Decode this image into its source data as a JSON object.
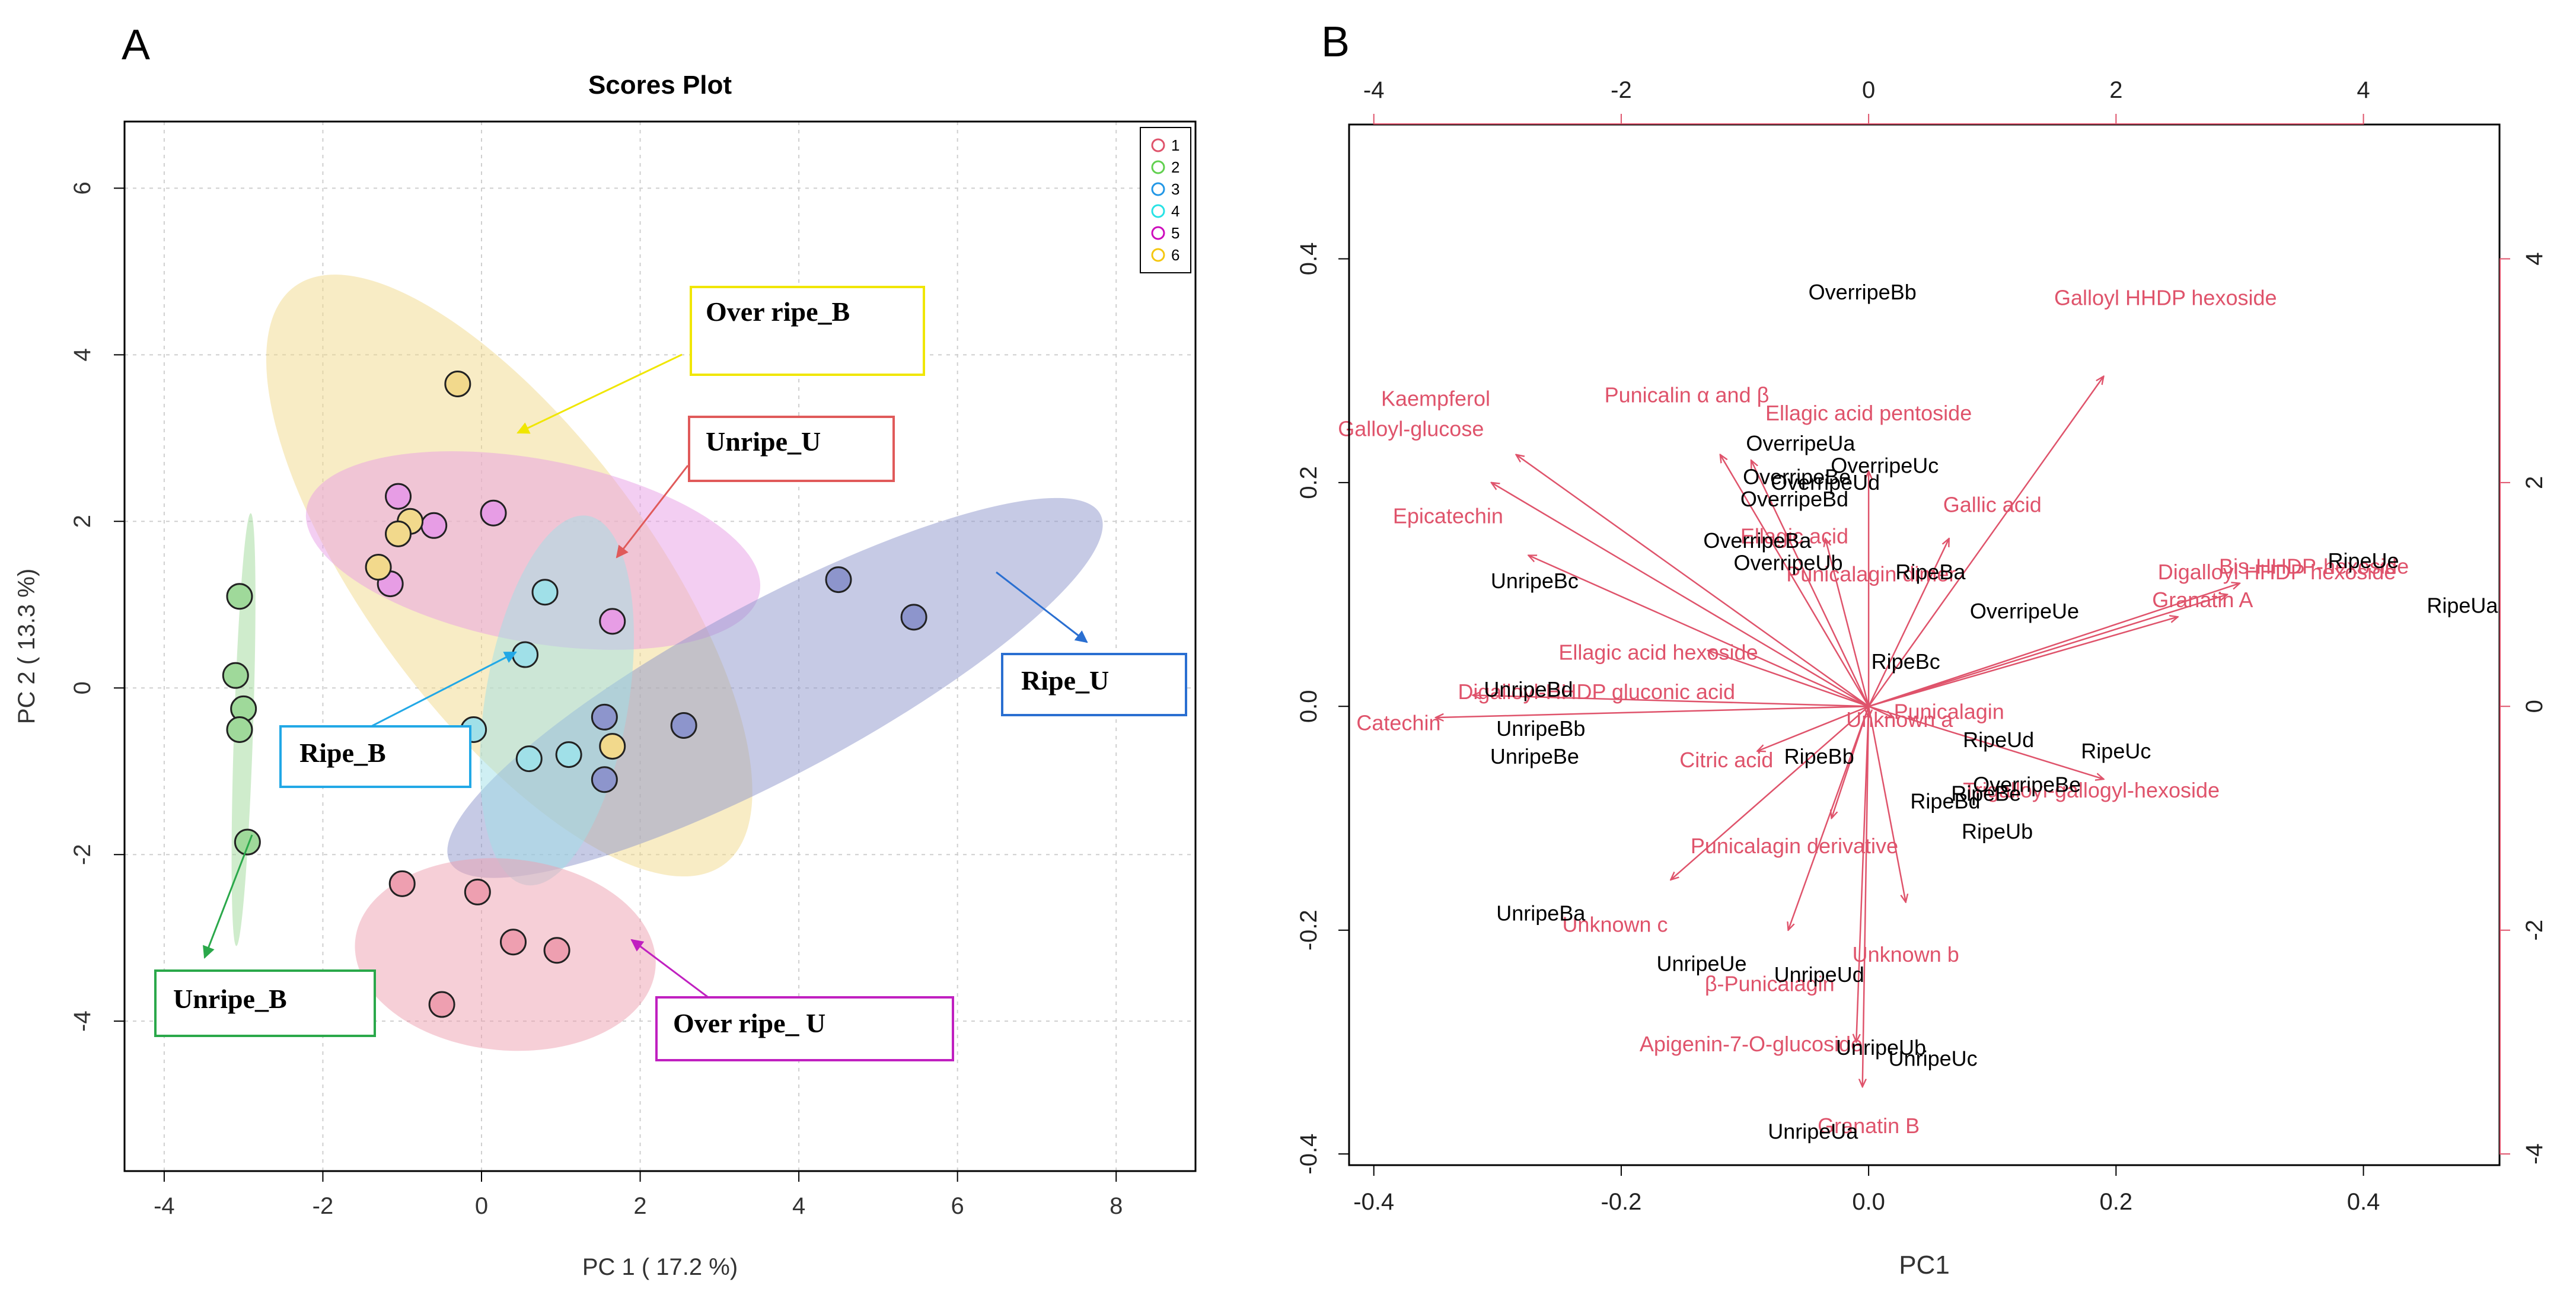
{
  "panelA": {
    "letter": "A",
    "title": "Scores Plot",
    "xlabel": "PC 1 ( 17.2 %)",
    "ylabel": "PC 2 ( 13.3 %)",
    "legend": [
      "1",
      "2",
      "3",
      "4",
      "5",
      "6"
    ],
    "group_colors": {
      "1": "#df536b",
      "2": "#61d04f",
      "3": "#2297e6",
      "4": "#28e2e5",
      "5": "#cd0bbc",
      "6": "#f5c710"
    },
    "fill_colors": {
      "1": "#ee9fb0",
      "2": "#9fd99a",
      "3": "#8d95cc",
      "4": "#a0e0e8",
      "5": "#e79de5",
      "6": "#f2d98c"
    },
    "annotations": [
      {
        "text": "Over ripe_B",
        "color": "#f0e600"
      },
      {
        "text": "Unripe_U",
        "color": "#e05a5a"
      },
      {
        "text": "Ripe_U",
        "color": "#2a6fd1"
      },
      {
        "text": "Ripe_B",
        "color": "#22a8e6"
      },
      {
        "text": "Unripe_B",
        "color": "#2aa84a"
      },
      {
        "text": "Over ripe_ U",
        "color": "#c020c0"
      }
    ]
  },
  "panelB": {
    "letter": "B",
    "xlabel": "PC1",
    "observation_color": "#000000",
    "variable_color": "#df536b"
  },
  "chart_data": [
    {
      "type": "scatter",
      "title": "Scores Plot",
      "xlabel": "PC 1 ( 17.2 %)",
      "ylabel": "PC 2 ( 13.3 %)",
      "xlim": [
        -4.5,
        9.0
      ],
      "ylim": [
        -5.8,
        6.8
      ],
      "xticks": [
        -4,
        -2,
        0,
        2,
        4,
        6,
        8
      ],
      "yticks": [
        -4,
        -2,
        0,
        2,
        4,
        6
      ],
      "grid": true,
      "legend_position": "top-right",
      "series": [
        {
          "name": "1",
          "points": [
            [
              -1.0,
              -2.35
            ],
            [
              -0.05,
              -2.45
            ],
            [
              0.4,
              -3.05
            ],
            [
              0.95,
              -3.15
            ],
            [
              -0.5,
              -3.8
            ]
          ]
        },
        {
          "name": "2",
          "points": [
            [
              -3.05,
              1.1
            ],
            [
              -3.1,
              0.15
            ],
            [
              -3.0,
              -0.25
            ],
            [
              -3.05,
              -0.5
            ],
            [
              -2.95,
              -1.85
            ]
          ]
        },
        {
          "name": "3",
          "points": [
            [
              4.5,
              1.3
            ],
            [
              5.45,
              0.85
            ],
            [
              1.55,
              -0.35
            ],
            [
              2.55,
              -0.45
            ],
            [
              1.55,
              -1.1
            ]
          ]
        },
        {
          "name": "4",
          "points": [
            [
              0.8,
              1.15
            ],
            [
              0.55,
              0.4
            ],
            [
              -0.1,
              -0.5
            ],
            [
              0.6,
              -0.85
            ],
            [
              1.1,
              -0.8
            ]
          ]
        },
        {
          "name": "5",
          "points": [
            [
              -1.05,
              2.3
            ],
            [
              0.15,
              2.1
            ],
            [
              -0.6,
              1.95
            ],
            [
              -1.15,
              1.25
            ],
            [
              1.65,
              0.8
            ]
          ]
        },
        {
          "name": "6",
          "points": [
            [
              -0.3,
              3.65
            ],
            [
              -0.9,
              2.0
            ],
            [
              -1.05,
              1.85
            ],
            [
              -1.3,
              1.45
            ],
            [
              1.65,
              -0.7
            ]
          ]
        }
      ],
      "ellipses": [
        {
          "group": "6",
          "center": [
            0.35,
            1.35
          ],
          "rx_data": 4.4,
          "ry_data": 1.75,
          "angle_deg": -52
        },
        {
          "group": "5",
          "center": [
            0.65,
            1.65
          ],
          "rx_data": 2.9,
          "ry_data": 1.1,
          "angle_deg": -10
        },
        {
          "group": "3",
          "center": [
            3.7,
            0.0
          ],
          "rx_data": 4.6,
          "ry_data": 1.05,
          "angle_deg": 27
        },
        {
          "group": "4",
          "center": [
            0.95,
            -0.15
          ],
          "rx_data": 2.25,
          "ry_data": 0.9,
          "angle_deg": 80
        },
        {
          "group": "1",
          "center": [
            0.3,
            -3.2
          ],
          "rx_data": 1.9,
          "ry_data": 1.15,
          "angle_deg": -5
        },
        {
          "group": "2",
          "center": [
            -3.0,
            -0.5
          ],
          "rx_data": 2.6,
          "ry_data": 0.12,
          "angle_deg": 88
        }
      ]
    },
    {
      "type": "scatter",
      "subtype": "biplot",
      "xlabel": "PC1",
      "xlim": [
        -0.42,
        0.51
      ],
      "ylim": [
        -0.41,
        0.52
      ],
      "xticks": [
        -0.4,
        -0.2,
        0.0,
        0.2,
        0.4
      ],
      "yticks": [
        -0.4,
        -0.2,
        0.0,
        0.2,
        0.4
      ],
      "x2lim": [
        -4.2,
        5.1
      ],
      "y2lim": [
        -4.1,
        5.2
      ],
      "x2ticks": [
        -4,
        -2,
        0,
        2,
        4
      ],
      "y2ticks": [
        -4,
        -2,
        0,
        2,
        4
      ],
      "observations": [
        {
          "label": "OverripeBb",
          "x": -0.005,
          "y": 0.37
        },
        {
          "label": "OverripeUa",
          "x": -0.055,
          "y": 0.235
        },
        {
          "label": "OverripeUc",
          "x": 0.013,
          "y": 0.215
        },
        {
          "label": "OverripeBe",
          "x": -0.058,
          "y": 0.205
        },
        {
          "label": "OverripeUd",
          "x": -0.035,
          "y": 0.2
        },
        {
          "label": "OverripeBd",
          "x": -0.06,
          "y": 0.185
        },
        {
          "label": "OverripeBa",
          "x": -0.09,
          "y": 0.148
        },
        {
          "label": "OverripeUb",
          "x": -0.065,
          "y": 0.128
        },
        {
          "label": "UnripeBc",
          "x": -0.27,
          "y": 0.112
        },
        {
          "label": "RipeBa",
          "x": 0.05,
          "y": 0.12
        },
        {
          "label": "OverripeUe",
          "x": 0.126,
          "y": 0.085
        },
        {
          "label": "RipeUe",
          "x": 0.4,
          "y": 0.13
        },
        {
          "label": "RipeUa",
          "x": 0.48,
          "y": 0.09
        },
        {
          "label": "RipeBc",
          "x": 0.03,
          "y": 0.04
        },
        {
          "label": "UnripeBd",
          "x": -0.275,
          "y": 0.015
        },
        {
          "label": "UnripeBb",
          "x": -0.265,
          "y": -0.02
        },
        {
          "label": "UnripeBe",
          "x": -0.27,
          "y": -0.045
        },
        {
          "label": "RipeUd",
          "x": 0.105,
          "y": -0.03
        },
        {
          "label": "RipeUc",
          "x": 0.2,
          "y": -0.04
        },
        {
          "label": "RipeBb",
          "x": -0.04,
          "y": -0.045
        },
        {
          "label": "OverripeBe",
          "x": 0.128,
          "y": -0.07
        },
        {
          "label": "RipeBe",
          "x": 0.095,
          "y": -0.078
        },
        {
          "label": "RipeBd",
          "x": 0.062,
          "y": -0.085
        },
        {
          "label": "RipeUb",
          "x": 0.104,
          "y": -0.112
        },
        {
          "label": "UnripeBa",
          "x": -0.265,
          "y": -0.185
        },
        {
          "label": "UnripeUe",
          "x": -0.135,
          "y": -0.23
        },
        {
          "label": "UnripeUd",
          "x": -0.04,
          "y": -0.24
        },
        {
          "label": "UnripeUb",
          "x": 0.01,
          "y": -0.305
        },
        {
          "label": "UnripeUc",
          "x": 0.052,
          "y": -0.315
        },
        {
          "label": "UnripeUa",
          "x": -0.045,
          "y": -0.38
        }
      ],
      "variables": [
        {
          "label": "Galloyl HHDP hexoside",
          "x": 0.19,
          "y": 0.295,
          "lx": 0.24,
          "ly": 0.365
        },
        {
          "label": "Kaempferol",
          "x": -0.285,
          "y": 0.225,
          "lx": -0.35,
          "ly": 0.275
        },
        {
          "label": "Punicalin α and β",
          "x": -0.12,
          "y": 0.225,
          "lx": -0.147,
          "ly": 0.278
        },
        {
          "label": "Ellagic acid pentoside",
          "x": -0.095,
          "y": 0.22,
          "lx": 0.0,
          "ly": 0.262
        },
        {
          "label": "Galloyl-glucose",
          "x": -0.305,
          "y": 0.2,
          "lx": -0.37,
          "ly": 0.248
        },
        {
          "label": "Gallic acid",
          "x": 0.065,
          "y": 0.15,
          "lx": 0.1,
          "ly": 0.18
        },
        {
          "label": "Epicatechin",
          "x": -0.275,
          "y": 0.135,
          "lx": -0.34,
          "ly": 0.17
        },
        {
          "label": "Ellagic acid",
          "x": -0.035,
          "y": 0.15,
          "lx": -0.06,
          "ly": 0.152
        },
        {
          "label": "Punicalagin dimer",
          "x": 0.0,
          "y": 0.21,
          "lx": 0.002,
          "ly": 0.118
        },
        {
          "label": "Bis-HHDP-hexoside",
          "x": 0.3,
          "y": 0.11,
          "lx": 0.36,
          "ly": 0.125
        },
        {
          "label": "Digalloyl HHDP hexoside",
          "x": 0.29,
          "y": 0.1,
          "lx": 0.33,
          "ly": 0.12
        },
        {
          "label": "Granatin A",
          "x": 0.25,
          "y": 0.08,
          "lx": 0.27,
          "ly": 0.095
        },
        {
          "label": "Ellagic acid hexoside",
          "x": -0.13,
          "y": 0.05,
          "lx": -0.17,
          "ly": 0.048
        },
        {
          "label": "Digalloyl-HHDP gluconic acid",
          "x": -0.32,
          "y": 0.01,
          "lx": -0.22,
          "ly": 0.013
        },
        {
          "label": "Catechin",
          "x": -0.35,
          "y": -0.01,
          "lx": -0.38,
          "ly": -0.015
        },
        {
          "label": "Punicalagin",
          "x": 0.02,
          "y": -0.01,
          "lx": 0.065,
          "ly": -0.005
        },
        {
          "label": "Unknown a",
          "x": 0.0,
          "y": -0.01,
          "lx": 0.025,
          "ly": -0.012
        },
        {
          "label": "Citric acid",
          "x": -0.09,
          "y": -0.04,
          "lx": -0.115,
          "ly": -0.048
        },
        {
          "label": "Trigalloyl-gallogyl-hexoside",
          "x": 0.19,
          "y": -0.065,
          "lx": 0.18,
          "ly": -0.075
        },
        {
          "label": "Punicalagin derivative",
          "x": -0.03,
          "y": -0.1,
          "lx": -0.06,
          "ly": -0.125
        },
        {
          "label": "Unknown c",
          "x": -0.16,
          "y": -0.155,
          "lx": -0.205,
          "ly": -0.195
        },
        {
          "label": "Unknown b",
          "x": 0.03,
          "y": -0.175,
          "lx": 0.03,
          "ly": -0.222
        },
        {
          "label": "β-Punicalagin",
          "x": -0.065,
          "y": -0.2,
          "lx": -0.08,
          "ly": -0.248
        },
        {
          "label": "Apigenin-7-O-glucoside",
          "x": -0.01,
          "y": -0.3,
          "lx": -0.095,
          "ly": -0.302
        },
        {
          "label": "Granatin B",
          "x": -0.005,
          "y": -0.34,
          "lx": 0.0,
          "ly": -0.375
        }
      ]
    }
  ]
}
